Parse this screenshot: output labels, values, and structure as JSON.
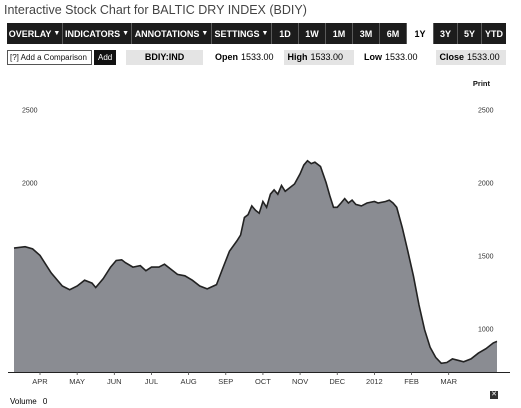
{
  "title": "Interactive Stock Chart for BALTIC DRY INDEX (BDIY)",
  "toolbar": {
    "menus": [
      {
        "label": "OVERLAY"
      },
      {
        "label": "INDICATORS"
      },
      {
        "label": "ANNOTATIONS"
      },
      {
        "label": "SETTINGS"
      }
    ],
    "ranges": [
      {
        "label": "1D",
        "active": false
      },
      {
        "label": "1W",
        "active": false
      },
      {
        "label": "1M",
        "active": false
      },
      {
        "label": "3M",
        "active": false
      },
      {
        "label": "6M",
        "active": false
      },
      {
        "label": "1Y",
        "active": true
      },
      {
        "label": "3Y",
        "active": false
      },
      {
        "label": "5Y",
        "active": false
      },
      {
        "label": "YTD",
        "active": false
      }
    ]
  },
  "compare": {
    "placeholder": "[?] Add a Comparison",
    "add_label": "Add"
  },
  "quote": {
    "ticker": "BDIY:IND",
    "open_label": "Open",
    "open": "1533.00",
    "high_label": "High",
    "high": "1533.00",
    "low_label": "Low",
    "low": "1533.00",
    "close_label": "Close",
    "close": "1533.00"
  },
  "print_label": "Print",
  "volume": {
    "label": "Volume",
    "value": "0"
  },
  "close_icon": "close-icon",
  "colors": {
    "area_fill": "#8a8c92",
    "area_line": "#222222",
    "toolbar_bg": "#1c1c1c"
  },
  "chart_data": {
    "type": "area",
    "title": "",
    "xlabel": "",
    "ylabel": "",
    "ylim": [
      700,
      2800
    ],
    "y_ticks": [
      1000,
      1500,
      2000,
      2500
    ],
    "x_ticks": [
      "APR",
      "MAY",
      "JUN",
      "JUL",
      "AUG",
      "SEP",
      "OCT",
      "NOV",
      "DEC",
      "2012",
      "FEB",
      "MAR"
    ],
    "grid": false,
    "series": [
      {
        "values": [
          [
            0,
            1550
          ],
          [
            0.3,
            1560
          ],
          [
            0.5,
            1545
          ],
          [
            0.7,
            1500
          ],
          [
            1.0,
            1380
          ],
          [
            1.3,
            1290
          ],
          [
            1.5,
            1265
          ],
          [
            1.7,
            1290
          ],
          [
            1.9,
            1330
          ],
          [
            2.1,
            1310
          ],
          [
            2.2,
            1280
          ],
          [
            2.4,
            1340
          ],
          [
            2.6,
            1420
          ],
          [
            2.75,
            1465
          ],
          [
            2.9,
            1470
          ],
          [
            3.0,
            1450
          ],
          [
            3.2,
            1420
          ],
          [
            3.4,
            1430
          ],
          [
            3.55,
            1395
          ],
          [
            3.7,
            1420
          ],
          [
            3.9,
            1420
          ],
          [
            4.05,
            1440
          ],
          [
            4.2,
            1410
          ],
          [
            4.4,
            1370
          ],
          [
            4.6,
            1360
          ],
          [
            4.8,
            1330
          ],
          [
            5.0,
            1290
          ],
          [
            5.2,
            1270
          ],
          [
            5.45,
            1300
          ],
          [
            5.6,
            1400
          ],
          [
            5.8,
            1530
          ],
          [
            6.0,
            1600
          ],
          [
            6.1,
            1640
          ],
          [
            6.2,
            1760
          ],
          [
            6.3,
            1780
          ],
          [
            6.4,
            1840
          ],
          [
            6.5,
            1810
          ],
          [
            6.6,
            1790
          ],
          [
            6.7,
            1870
          ],
          [
            6.8,
            1830
          ],
          [
            6.9,
            1920
          ],
          [
            7.0,
            1950
          ],
          [
            7.1,
            1920
          ],
          [
            7.2,
            1980
          ],
          [
            7.3,
            1940
          ],
          [
            7.4,
            1960
          ],
          [
            7.55,
            1990
          ],
          [
            7.7,
            2060
          ],
          [
            7.8,
            2120
          ],
          [
            7.9,
            2150
          ],
          [
            8.0,
            2130
          ],
          [
            8.1,
            2140
          ],
          [
            8.25,
            2110
          ],
          [
            8.4,
            2000
          ],
          [
            8.5,
            1910
          ],
          [
            8.6,
            1830
          ],
          [
            8.7,
            1830
          ],
          [
            8.8,
            1860
          ],
          [
            8.9,
            1890
          ],
          [
            9.0,
            1860
          ],
          [
            9.1,
            1880
          ],
          [
            9.2,
            1850
          ],
          [
            9.35,
            1840
          ],
          [
            9.5,
            1860
          ],
          [
            9.7,
            1870
          ],
          [
            9.8,
            1860
          ],
          [
            10.0,
            1870
          ],
          [
            10.1,
            1880
          ],
          [
            10.2,
            1860
          ],
          [
            10.3,
            1830
          ],
          [
            10.45,
            1690
          ],
          [
            10.6,
            1530
          ],
          [
            10.75,
            1360
          ],
          [
            10.9,
            1160
          ],
          [
            11.05,
            990
          ],
          [
            11.2,
            870
          ],
          [
            11.35,
            800
          ],
          [
            11.5,
            760
          ],
          [
            11.65,
            765
          ],
          [
            11.8,
            790
          ],
          [
            11.95,
            780
          ],
          [
            12.1,
            770
          ],
          [
            12.3,
            790
          ],
          [
            12.5,
            830
          ],
          [
            12.7,
            860
          ],
          [
            12.9,
            900
          ],
          [
            13.0,
            910
          ]
        ]
      }
    ]
  }
}
